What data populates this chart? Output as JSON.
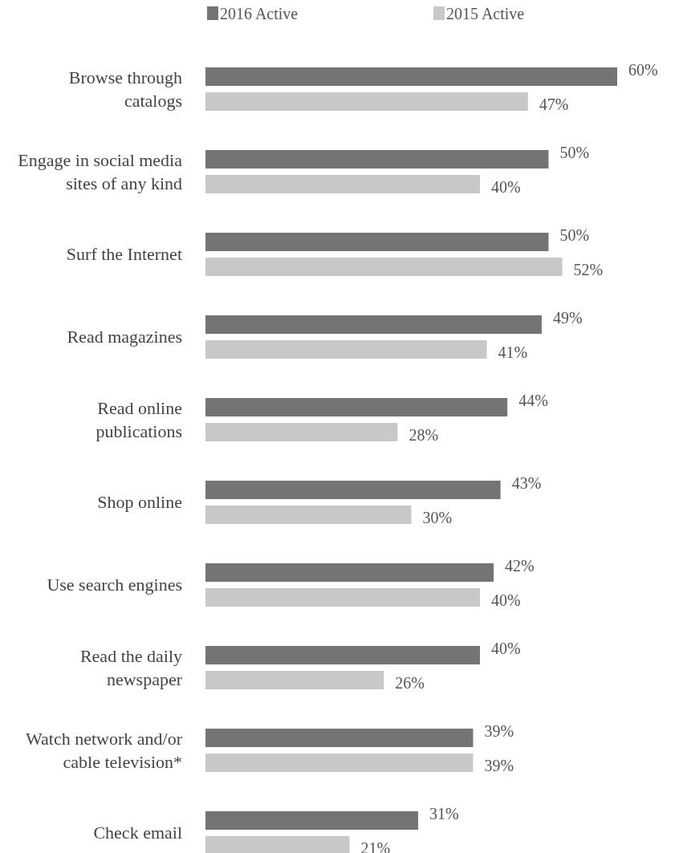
{
  "chart_data": {
    "type": "bar",
    "orientation": "horizontal",
    "legend": "top",
    "categories": [
      "Browse through catalogs",
      "Engage in social media sites of any kind",
      "Surf the Internet",
      "Read magazines",
      "Read online publications",
      "Shop online",
      "Use search engines",
      "Read the daily newspaper",
      "Watch network and/or cable television*",
      "Check email"
    ],
    "series": [
      {
        "name": "2016 Active",
        "color": "#747474",
        "values": [
          60,
          50,
          50,
          49,
          44,
          43,
          42,
          40,
          39,
          31
        ],
        "value_labels": [
          "60%",
          "50%",
          "50%",
          "49%",
          "44%",
          "43%",
          "42%",
          "40%",
          "39%",
          "31%"
        ]
      },
      {
        "name": "2015 Active",
        "color": "#c8c8c8",
        "values": [
          47,
          40,
          52,
          41,
          28,
          30,
          40,
          26,
          39,
          21
        ],
        "value_labels": [
          "47%",
          "40%",
          "52%",
          "41%",
          "28%",
          "30%",
          "40%",
          "26%",
          "39%",
          "21%"
        ]
      }
    ]
  }
}
